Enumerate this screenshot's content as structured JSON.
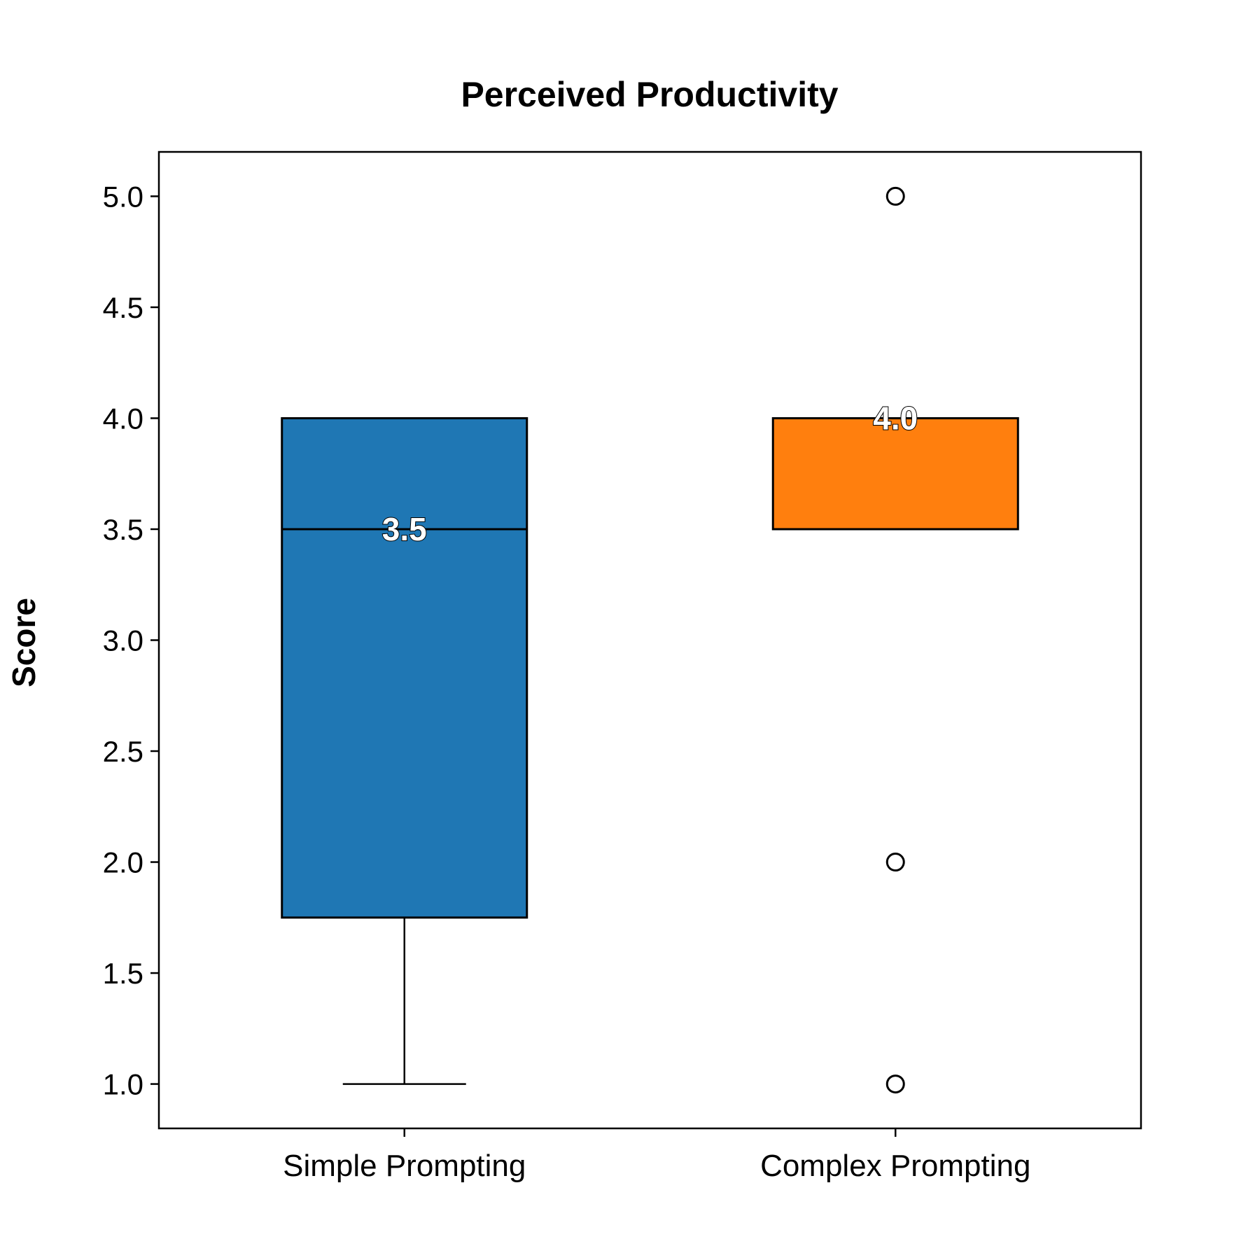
{
  "chart_data": {
    "type": "box",
    "title": "Perceived Productivity",
    "xlabel": "",
    "ylabel": "Score",
    "ylim": [
      0.8,
      5.2
    ],
    "yticks": [
      "1.0",
      "1.5",
      "2.0",
      "2.5",
      "3.0",
      "3.5",
      "4.0",
      "4.5",
      "5.0"
    ],
    "grid": false,
    "categories": [
      "Simple Prompting",
      "Complex Prompting"
    ],
    "boxes": [
      {
        "category": "Simple Prompting",
        "whisker_low": 1.0,
        "q1": 1.75,
        "median": 3.5,
        "q3": 4.0,
        "whisker_high": 4.0,
        "outliers": [],
        "median_label": "3.5",
        "color": "#1f77b4"
      },
      {
        "category": "Complex Prompting",
        "whisker_low": 3.5,
        "q1": 3.5,
        "median": 4.0,
        "q3": 4.0,
        "whisker_high": 4.0,
        "outliers": [
          5.0,
          2.0,
          1.0
        ],
        "median_label": "4.0",
        "color": "#ff7f0e"
      }
    ]
  }
}
